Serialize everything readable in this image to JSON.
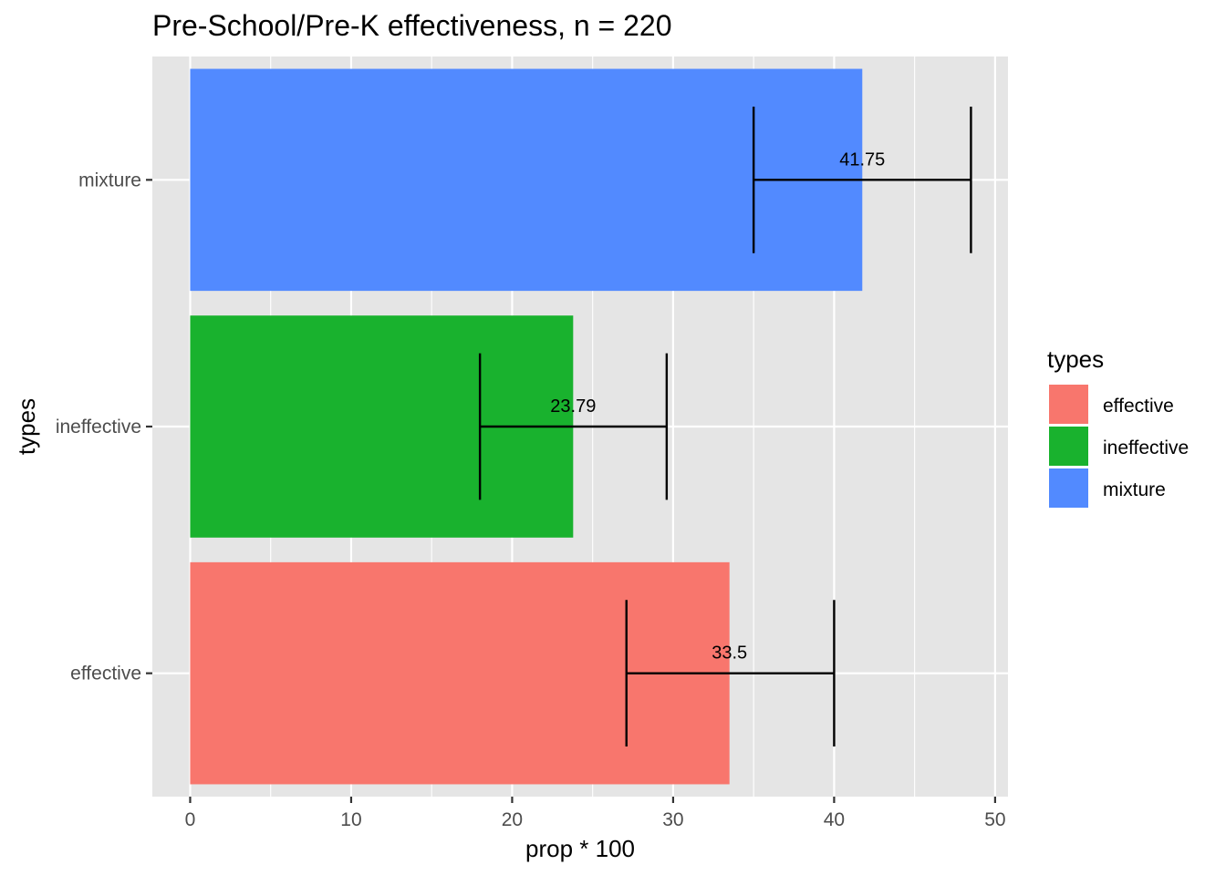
{
  "chart_data": {
    "type": "bar",
    "orientation": "horizontal",
    "title": "Pre-School/Pre-K effectiveness, n = 220",
    "xlabel": "prop * 100",
    "ylabel": "types",
    "categories": [
      "effective",
      "ineffective",
      "mixture"
    ],
    "values": [
      33.5,
      23.79,
      41.75
    ],
    "value_labels": [
      "33.5",
      "23.79",
      "41.75"
    ],
    "error_bars": [
      {
        "low": 27.1,
        "high": 40.0
      },
      {
        "low": 18.0,
        "high": 29.6
      },
      {
        "low": 35.0,
        "high": 48.5
      }
    ],
    "xlim": [
      -2.35,
      50.8
    ],
    "xticks": [
      0,
      10,
      20,
      30,
      40,
      50
    ],
    "xtick_labels": [
      "0",
      "10",
      "20",
      "30",
      "40",
      "50"
    ],
    "grid": true,
    "legend": {
      "title": "types",
      "position": "right",
      "entries": [
        "effective",
        "ineffective",
        "mixture"
      ]
    },
    "colors": {
      "effective": "#F8766D",
      "ineffective": "#19B22E",
      "mixture": "#528AFF",
      "panel_background": "#E5E5E5",
      "grid": "#FFFFFF",
      "error_bar": "#000000"
    }
  }
}
